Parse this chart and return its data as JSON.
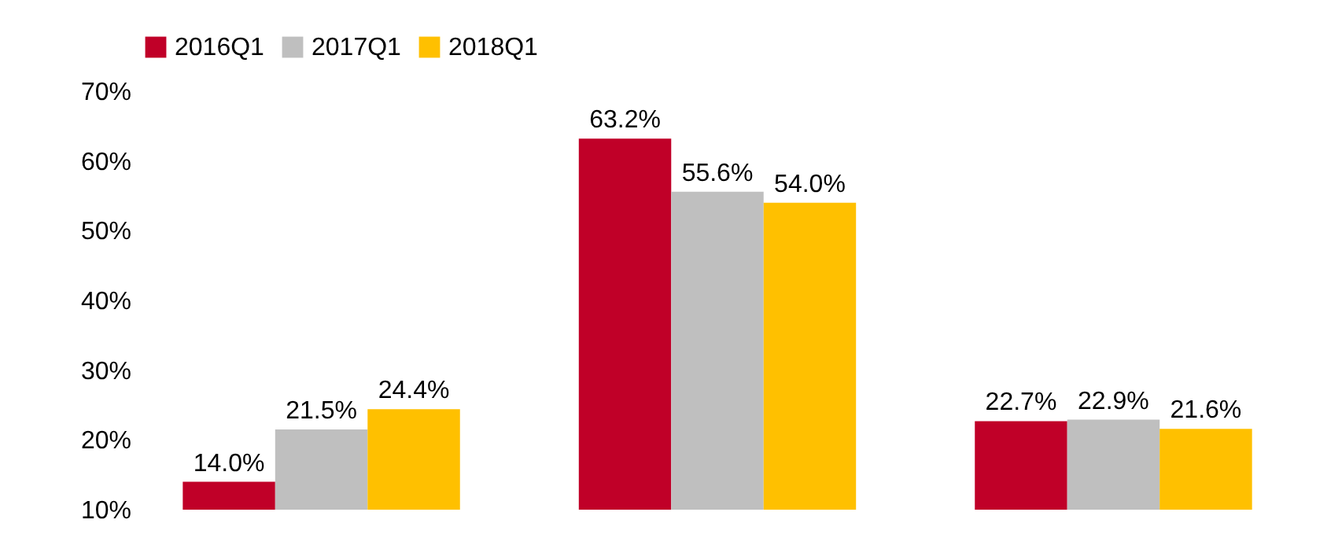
{
  "chart_data": {
    "type": "bar",
    "categories": [
      null,
      null,
      null
    ],
    "series": [
      {
        "name": "2016Q1",
        "color": "#c00028",
        "values": [
          14.0,
          63.2,
          22.7
        ],
        "value_labels": [
          "14.0%",
          "63.2%",
          "22.7%"
        ]
      },
      {
        "name": "2017Q1",
        "color": "#bfbfbf",
        "values": [
          21.5,
          55.6,
          22.9
        ],
        "value_labels": [
          "21.5%",
          "55.6%",
          "22.9%"
        ]
      },
      {
        "name": "2018Q1",
        "color": "#ffc000",
        "values": [
          24.4,
          54.0,
          21.6
        ],
        "value_labels": [
          "24.4%",
          "54.0%",
          "21.6%"
        ]
      }
    ],
    "ylim": [
      10,
      70
    ],
    "yticks": [
      {
        "value": 10,
        "label": "10%"
      },
      {
        "value": 20,
        "label": "20%"
      },
      {
        "value": 30,
        "label": "30%"
      },
      {
        "value": 40,
        "label": "40%"
      },
      {
        "value": 50,
        "label": "50%"
      },
      {
        "value": 60,
        "label": "60%"
      },
      {
        "value": 70,
        "label": "70%"
      }
    ],
    "legend": "top",
    "tick_labels": "y"
  }
}
